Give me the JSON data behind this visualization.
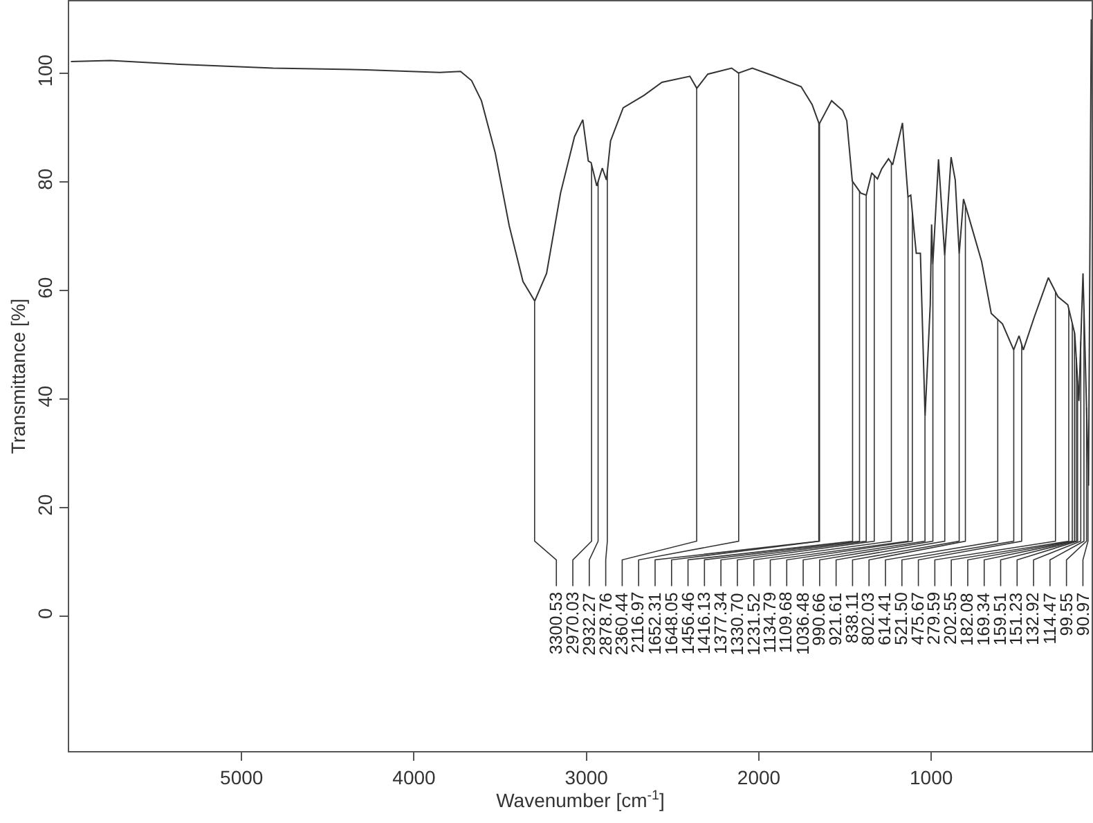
{
  "chart_data": {
    "type": "line",
    "xlabel": "Wavenumber [cm$^{-1}$]",
    "ylabel": "Transmittance [%]",
    "x": [
      5990,
      5761,
      5358,
      4818,
      4278,
      3851,
      3730,
      3666,
      3609,
      3529,
      3448,
      3368,
      3300,
      3231,
      3150,
      3069,
      3021,
      2989,
      2973,
      2940,
      2908,
      2884,
      2860,
      2787,
      2666,
      2562,
      2400,
      2360,
      2296,
      2158,
      2118,
      2038,
      1917,
      1755,
      1691,
      1650,
      1578,
      1514,
      1490,
      1458,
      1409,
      1377,
      1345,
      1312,
      1288,
      1248,
      1224,
      1167,
      1135,
      1119,
      1103,
      1087,
      1063,
      1036,
      1006,
      998,
      991,
      958,
      922,
      885,
      861,
      838,
      813,
      789,
      708,
      652,
      587,
      522,
      491,
      466,
      402,
      321,
      265,
      208,
      168,
      144,
      120,
      104,
      88,
      72
    ],
    "series": [
      {
        "color": "#333333",
        "values": [
          102.2,
          102.4,
          101.7,
          101,
          100.7,
          100.2,
          100.4,
          98.7,
          95,
          85.4,
          72,
          61.7,
          58.1,
          63.2,
          78,
          88.4,
          91.5,
          83.9,
          83.6,
          79.3,
          82.6,
          80.4,
          87.6,
          93.7,
          96,
          98.4,
          99.5,
          97.3,
          99.9,
          101,
          100.1,
          101,
          99.6,
          97.6,
          94.3,
          90.7,
          95,
          93.2,
          91.3,
          80.2,
          78,
          77.6,
          81.7,
          80.6,
          82.4,
          84.3,
          83.2,
          90.9,
          77.3,
          77.6,
          72.1,
          66.9,
          66.9,
          36.9,
          57.4,
          72.2,
          64.9,
          84.2,
          66.5,
          84.6,
          80.4,
          66.8,
          76.9,
          74.3,
          65.4,
          55.8,
          53.9,
          49.1,
          51.7,
          49.1,
          55.2,
          62.4,
          58.9,
          57.4,
          52.1,
          39.7,
          63.2,
          44.1,
          24.1,
          110
        ]
      }
    ],
    "xlim": [
      6000,
      70
    ],
    "xticks": [
      5000,
      4000,
      3000,
      2000,
      1000
    ],
    "ylim": [
      -24.8,
      113.3
    ],
    "yticks": [
      0,
      20,
      40,
      60,
      80,
      100
    ],
    "marker": "none",
    "line_style": "solid",
    "annotations": [
      {
        "text": "3300.53",
        "x": 3300.53,
        "y": 58.1
      },
      {
        "text": "2970.03",
        "x": 2970.03,
        "y": 83.2
      },
      {
        "text": "2932.27",
        "x": 2932.27,
        "y": 80.1
      },
      {
        "text": "2878.76",
        "x": 2878.76,
        "y": 82.0
      },
      {
        "text": "2360.44",
        "x": 2360.44,
        "y": 97.3
      },
      {
        "text": "2116.97",
        "x": 2116.97,
        "y": 100.1
      },
      {
        "text": "1652.31",
        "x": 1652.31,
        "y": 90.9
      },
      {
        "text": "1648.05",
        "x": 1648.05,
        "y": 90.8
      },
      {
        "text": "1456.46",
        "x": 1456.46,
        "y": 80.1
      },
      {
        "text": "1416.13",
        "x": 1416.13,
        "y": 78.3
      },
      {
        "text": "1377.34",
        "x": 1377.34,
        "y": 77.6
      },
      {
        "text": "1330.70",
        "x": 1330.7,
        "y": 81.2
      },
      {
        "text": "1231.52",
        "x": 1231.52,
        "y": 83.5
      },
      {
        "text": "1134.79",
        "x": 1134.79,
        "y": 77.3
      },
      {
        "text": "1109.68",
        "x": 1109.68,
        "y": 74.4
      },
      {
        "text": "1036.48",
        "x": 1036.48,
        "y": 36.9
      },
      {
        "text": "990.66",
        "x": 990.66,
        "y": 64.9
      },
      {
        "text": "921.61",
        "x": 921.61,
        "y": 66.5
      },
      {
        "text": "838.11",
        "x": 838.11,
        "y": 66.8
      },
      {
        "text": "802.03",
        "x": 802.03,
        "y": 75.7
      },
      {
        "text": "614.41",
        "x": 614.41,
        "y": 54.7
      },
      {
        "text": "521.50",
        "x": 521.5,
        "y": 49.1
      },
      {
        "text": "475.67",
        "x": 475.67,
        "y": 50.1
      },
      {
        "text": "279.59",
        "x": 279.59,
        "y": 59.8
      },
      {
        "text": "202.55",
        "x": 202.55,
        "y": 56.7
      },
      {
        "text": "182.08",
        "x": 182.08,
        "y": 54.0
      },
      {
        "text": "169.34",
        "x": 169.34,
        "y": 52.3
      },
      {
        "text": "159.51",
        "x": 159.51,
        "y": 47.7
      },
      {
        "text": "151.23",
        "x": 151.23,
        "y": 43.4
      },
      {
        "text": "132.92",
        "x": 132.92,
        "y": 50.6
      },
      {
        "text": "114.47",
        "x": 114.47,
        "y": 56.6
      },
      {
        "text": "99.55",
        "x": 99.55,
        "y": 38.5
      },
      {
        "text": "90.97",
        "x": 90.97,
        "y": 27.8
      }
    ]
  }
}
